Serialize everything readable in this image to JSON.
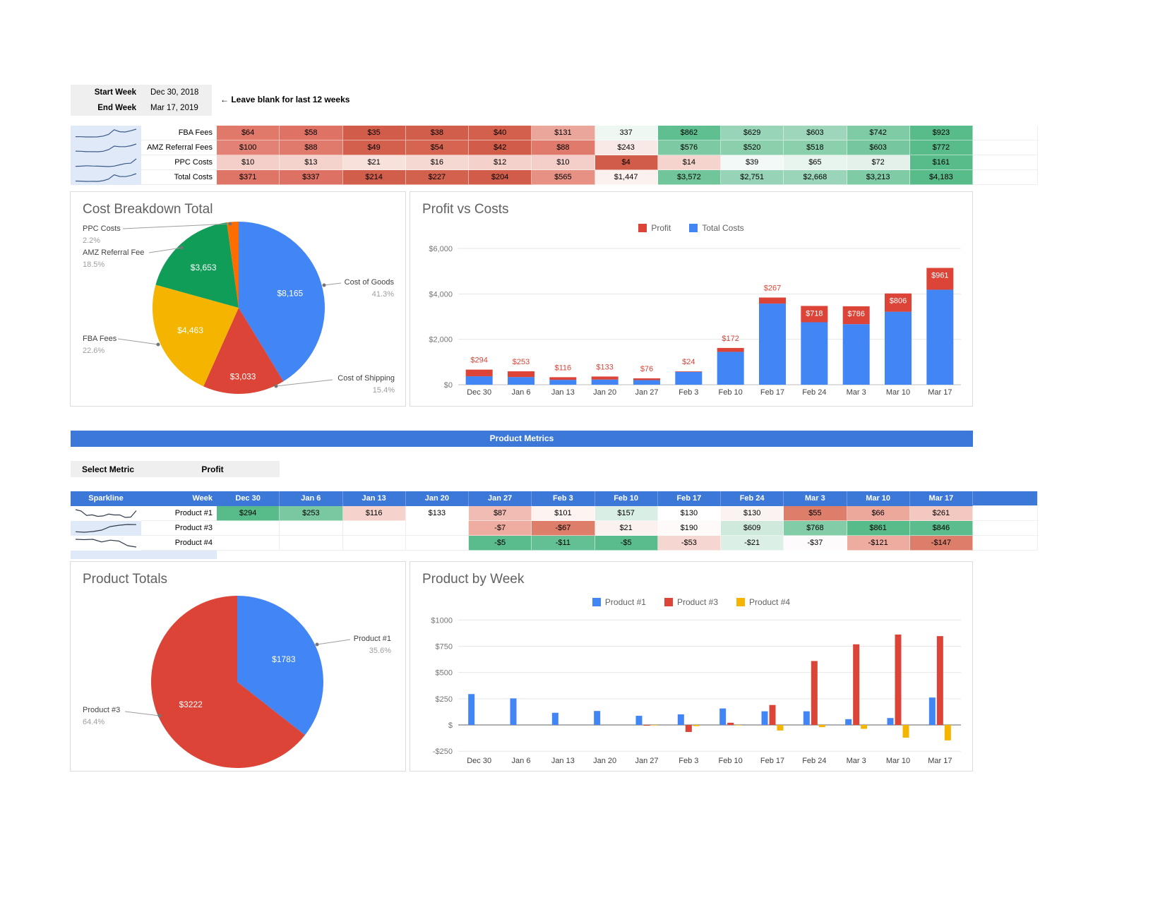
{
  "palette": {
    "blue": "#4285f4",
    "red": "#db4437",
    "yellow": "#f4b400",
    "green": "#0f9d58",
    "orange": "#ff6d01",
    "header_blue": "#3c78d8",
    "sparkline_bg": "#dfe9f7"
  },
  "date_filter": {
    "rows": [
      {
        "label": "Start Week",
        "value": "Dec 30, 2018"
      },
      {
        "label": "End Week",
        "value": "Mar 17, 2019"
      }
    ],
    "note": "← Leave blank for last 12 weeks"
  },
  "weeks": [
    "Dec 30",
    "Jan 6",
    "Jan 13",
    "Jan 20",
    "Jan 27",
    "Feb 3",
    "Feb 10",
    "Feb 17",
    "Feb 24",
    "Mar 3",
    "Mar 10",
    "Mar 17"
  ],
  "cost_table": {
    "rows": [
      {
        "label": "FBA Fees",
        "cells": [
          "$64",
          "$58",
          "$35",
          "$38",
          "$40",
          "$131",
          "337",
          "$862",
          "$629",
          "$603",
          "$742",
          "$923"
        ],
        "bgs": [
          "#e0796a",
          "#de7264",
          "#d05c49",
          "#d15e4b",
          "#d2604c",
          "#eba69b",
          "#eef7f2",
          "#5fbf90",
          "#98d4b8",
          "#9dd6ba",
          "#7ecba6",
          "#57bb8a"
        ],
        "nums": [
          64,
          58,
          35,
          38,
          40,
          131,
          337,
          862,
          629,
          603,
          742,
          923
        ],
        "spark_bg": "#dfe9f7"
      },
      {
        "label": "AMZ Referral Fees",
        "cells": [
          "$100",
          "$88",
          "$49",
          "$54",
          "$42",
          "$88",
          "$243",
          "$576",
          "$520",
          "$518",
          "$603",
          "$772"
        ],
        "bgs": [
          "#e28275",
          "#e07a6c",
          "#d3604d",
          "#d56550",
          "#d05c49",
          "#e07a6c",
          "#f9e9e6",
          "#7cc9a3",
          "#8ad0ac",
          "#8bd0ad",
          "#76c79f",
          "#57bb8a"
        ],
        "nums": [
          100,
          88,
          49,
          54,
          42,
          88,
          243,
          576,
          520,
          518,
          603,
          772
        ],
        "spark_bg": "#dfe9f7"
      },
      {
        "label": "PPC Costs",
        "cells": [
          "$10",
          "$13",
          "$21",
          "$16",
          "$12",
          "$10",
          "$4",
          "$14",
          "$39",
          "$65",
          "$72",
          "$161"
        ],
        "bgs": [
          "#f4cfc9",
          "#f5d3cd",
          "#f8e0db",
          "#f6d8d2",
          "#f5d1cb",
          "#f4cfc9",
          "#d05c49",
          "#f5d4ce",
          "#f3f9f6",
          "#e8f4ee",
          "#e3f1ea",
          "#57bb8a"
        ],
        "nums": [
          10,
          13,
          21,
          16,
          12,
          10,
          4,
          14,
          39,
          65,
          72,
          161
        ],
        "spark_bg": "#dfe9f7"
      },
      {
        "label": "Total Costs",
        "cells": [
          "$371",
          "$337",
          "$214",
          "$227",
          "$204",
          "$565",
          "$1,447",
          "$3,572",
          "$2,751",
          "$2,668",
          "$3,213",
          "$4,183"
        ],
        "bgs": [
          "#df7567",
          "#dd7163",
          "#d15e4b",
          "#d2614d",
          "#d05c49",
          "#e79185",
          "#fbf2f0",
          "#71c59b",
          "#97d4b7",
          "#9bd5b9",
          "#7fcba6",
          "#57bb8a"
        ],
        "nums": [
          371,
          337,
          214,
          227,
          204,
          565,
          1447,
          3572,
          2751,
          2668,
          3213,
          4183
        ],
        "spark_bg": "#dfe9f7"
      }
    ]
  },
  "product_section": {
    "banner": "Product Metrics",
    "select_metric_label": "Select Metric",
    "selected_metric": "Profit",
    "table": {
      "header": {
        "sparkline": "Sparkline",
        "week": "Week"
      },
      "rows": [
        {
          "label": "Product #1",
          "cells": [
            "$294",
            "$253",
            "$116",
            "$133",
            "$87",
            "$101",
            "$157",
            "$130",
            "$130",
            "$55",
            "$66",
            "$261"
          ],
          "bgs": [
            "#57bb8a",
            "#79c8a2",
            "#f5d2cc",
            "#ffffff",
            "#f1bcb3",
            "#fdf3f1",
            "#d9eee4",
            "#ffffff",
            "#fbf3f1",
            "#dd7e6b",
            "#eca89b",
            "#f3c8c0"
          ],
          "nums": [
            294,
            253,
            116,
            133,
            87,
            101,
            157,
            130,
            130,
            55,
            66,
            261
          ],
          "spark_bg": "#ffffff"
        },
        {
          "label": "Product #3",
          "cells": [
            "",
            "",
            "",
            "",
            "-$7",
            "-$67",
            "$21",
            "$190",
            "$609",
            "$768",
            "$861",
            "$846"
          ],
          "bgs": [
            "",
            "",
            "",
            "",
            "#efada2",
            "#dd7e6b",
            "#fbf2f0",
            "#fdfaf9",
            "#cfe9dc",
            "#82cca8",
            "#57bb8a",
            "#5bbd8d"
          ],
          "nums": [
            null,
            null,
            null,
            null,
            -7,
            -67,
            21,
            190,
            609,
            768,
            861,
            846
          ],
          "spark_bg": "#dfe9f7"
        },
        {
          "label": "Product #4",
          "cells": [
            "",
            "",
            "",
            "",
            "-$5",
            "-$11",
            "-$5",
            "-$53",
            "-$21",
            "-$37",
            "-$121",
            "-$147"
          ],
          "bgs": [
            "",
            "",
            "",
            "",
            "#5abc8c",
            "#63c094",
            "#5abc8c",
            "#f6d6d0",
            "#dcefe6",
            "#fdfbfb",
            "#eeab9f",
            "#dd7e6b"
          ],
          "nums": [
            null,
            null,
            null,
            null,
            -5,
            -11,
            -5,
            -53,
            -21,
            -37,
            -121,
            -147
          ],
          "spark_bg": "#ffffff"
        }
      ]
    }
  },
  "chart_data": [
    {
      "type": "pie",
      "title": "Cost Breakdown Total",
      "slices": [
        {
          "label": "Cost of Goods",
          "pct": 41.3,
          "value_label": "$8,165",
          "color": "#4285f4"
        },
        {
          "label": "Cost of Shipping",
          "pct": 15.4,
          "value_label": "$3,033",
          "color": "#db4437"
        },
        {
          "label": "FBA Fees",
          "pct": 22.6,
          "value_label": "$4,463",
          "color": "#f4b400"
        },
        {
          "label": "AMZ Referral Fee",
          "pct": 18.5,
          "value_label": "$3,653",
          "color": "#0f9d58"
        },
        {
          "label": "PPC Costs",
          "pct": 2.2,
          "value_label": "",
          "color": "#ff6d01"
        }
      ]
    },
    {
      "type": "bar",
      "title": "Profit vs Costs",
      "stacked": true,
      "categories": [
        "Dec 30",
        "Jan 6",
        "Jan 13",
        "Jan 20",
        "Jan 27",
        "Feb 3",
        "Feb 10",
        "Feb 17",
        "Feb 24",
        "Mar 3",
        "Mar 10",
        "Mar 17"
      ],
      "series": [
        {
          "name": "Total Costs",
          "color": "#4285f4",
          "values": [
            371,
            337,
            214,
            227,
            204,
            565,
            1447,
            3572,
            2751,
            2668,
            3213,
            4183
          ]
        },
        {
          "name": "Profit",
          "color": "#db4437",
          "values": [
            294,
            253,
            116,
            133,
            76,
            24,
            172,
            267,
            718,
            786,
            806,
            961
          ],
          "labels": [
            "$294",
            "$253",
            "$116",
            "$133",
            "$76",
            "$24",
            "$172",
            "$267",
            "$718",
            "$786",
            "$806",
            "$961"
          ]
        }
      ],
      "chip_labels_from": 8,
      "legend": [
        {
          "label": "Profit",
          "color": "#db4437"
        },
        {
          "label": "Total Costs",
          "color": "#4285f4"
        }
      ],
      "y_ticks": [
        "$0",
        "$2,000",
        "$4,000",
        "$6,000"
      ],
      "y_tick_values": [
        0,
        2000,
        4000,
        6000
      ],
      "ylim": [
        0,
        6000
      ],
      "grid": true
    },
    {
      "type": "pie",
      "title": "Product Totals",
      "slices": [
        {
          "label": "Product #1",
          "pct": 35.6,
          "value_label": "$1783",
          "color": "#4285f4"
        },
        {
          "label": "Product #3",
          "pct": 64.4,
          "value_label": "$3222",
          "color": "#db4437"
        }
      ]
    },
    {
      "type": "bar",
      "title": "Product by Week",
      "stacked": false,
      "categories": [
        "Dec 30",
        "Jan 6",
        "Jan 13",
        "Jan 20",
        "Jan 27",
        "Feb 3",
        "Feb 10",
        "Feb 17",
        "Feb 24",
        "Mar 3",
        "Mar 10",
        "Mar 17"
      ],
      "series": [
        {
          "name": "Product #1",
          "color": "#4285f4",
          "values": [
            294,
            253,
            116,
            133,
            87,
            101,
            157,
            130,
            130,
            55,
            66,
            261
          ]
        },
        {
          "name": "Product #3",
          "color": "#db4437",
          "values": [
            null,
            null,
            null,
            null,
            -7,
            -67,
            21,
            190,
            609,
            768,
            861,
            846
          ]
        },
        {
          "name": "Product #4",
          "color": "#f4b400",
          "values": [
            null,
            null,
            null,
            null,
            -5,
            -11,
            -5,
            -53,
            -21,
            -37,
            -121,
            -147
          ]
        }
      ],
      "y_ticks": [
        "-$250",
        "$",
        "$250",
        "$500",
        "$750",
        "$1000"
      ],
      "y_tick_values": [
        -250,
        0,
        250,
        500,
        750,
        1000
      ],
      "ylim": [
        -250,
        1000
      ],
      "grid": true
    }
  ]
}
